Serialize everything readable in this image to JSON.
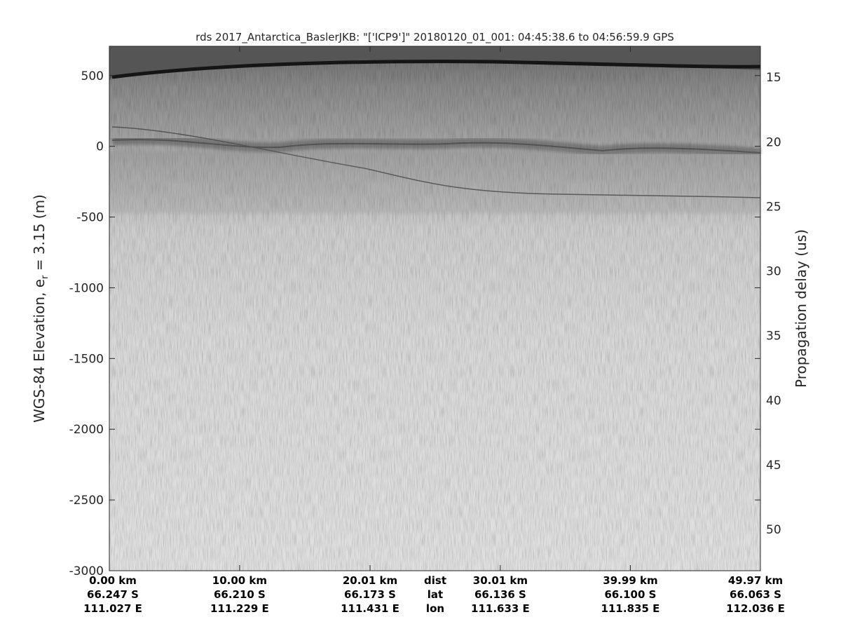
{
  "chart_data": {
    "type": "heatmap",
    "title": "rds 2017_Antarctica_BaslerJKB: \"['ICP9']\"  20180120_01_001: 04:45:38.6 to 04:56:59.9 GPS",
    "ylabel": "WGS-84 Elevation, e",
    "ylabel_sub": "r",
    "ylabel_tail": " = 3.15 (m)",
    "y2label": "Propagation delay (us)",
    "colormap": "gray",
    "ylim": [
      -3000,
      707
    ],
    "yticks": [
      "500",
      "0",
      "-500",
      "-1000",
      "-1500",
      "-2000",
      "-2500",
      "-3000"
    ],
    "ytick_values": [
      500,
      0,
      -500,
      -1000,
      -1500,
      -2000,
      -2500,
      -3000
    ],
    "y2lim": [
      12.6,
      53.2
    ],
    "y2ticks": [
      "15",
      "20",
      "25",
      "30",
      "35",
      "40",
      "45",
      "50"
    ],
    "y2tick_values": [
      15,
      20,
      25,
      30,
      35,
      40,
      45,
      50
    ],
    "xlim": [
      0,
      49.97
    ],
    "xtick_values": [
      0,
      10.0,
      20.01,
      30.01,
      39.99,
      49.97
    ],
    "xticks": [
      {
        "dist": "0.00 km",
        "lat": "66.247 S",
        "lon": "111.027 E"
      },
      {
        "dist": "10.00 km",
        "lat": "66.210 S",
        "lon": "111.229 E"
      },
      {
        "dist": "20.01 km",
        "lat": "66.173 S",
        "lon": "111.431 E"
      },
      {
        "dist": "30.01 km",
        "lat": "66.136 S",
        "lon": "111.633 E"
      },
      {
        "dist": "39.99 km",
        "lat": "66.100 S",
        "lon": "111.835 E"
      },
      {
        "dist": "49.97 km",
        "lat": "66.063 S",
        "lon": "112.036 E"
      }
    ],
    "xrow_labels": {
      "dist": "dist",
      "lat": "lat",
      "lon": "lon"
    }
  }
}
